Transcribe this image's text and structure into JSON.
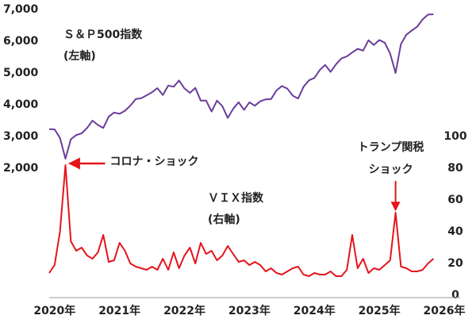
{
  "chart_data": {
    "type": "line",
    "categories": [
      null,
      "2020年",
      null,
      null,
      null,
      null,
      null,
      null,
      null,
      null,
      null,
      null,
      null,
      "2021年",
      null,
      null,
      null,
      null,
      null,
      null,
      null,
      null,
      null,
      null,
      null,
      "2022年",
      null,
      null,
      null,
      null,
      null,
      null,
      null,
      null,
      null,
      null,
      null,
      "2023年",
      null,
      null,
      null,
      null,
      null,
      null,
      null,
      null,
      null,
      null,
      null,
      "2024年",
      null,
      null,
      null,
      null,
      null,
      null,
      null,
      null,
      null,
      null,
      null,
      "2025年",
      null,
      null,
      null,
      null,
      null,
      null,
      null,
      null,
      null,
      null,
      null,
      "2026年"
    ],
    "series": [
      {
        "name": "Ｓ＆Ｐ500指数",
        "axis_note": "(左軸)",
        "color": "#6a3d9a",
        "values": [
          3230,
          3225,
          2954,
          2300,
          2912,
          3044,
          3100,
          3271,
          3500,
          3363,
          3270,
          3622,
          3756,
          3714,
          3811,
          3973,
          4181,
          4204,
          4297,
          4395,
          4523,
          4308,
          4605,
          4567,
          4766,
          4516,
          4374,
          4530,
          4132,
          4132,
          3785,
          4130,
          3955,
          3586,
          3872,
          4080,
          3840,
          4077,
          3970,
          4109,
          4169,
          4180,
          4450,
          4589,
          4508,
          4288,
          4194,
          4568,
          4770,
          4846,
          5096,
          5254,
          5036,
          5278,
          5460,
          5522,
          5648,
          5762,
          5705,
          6032,
          5882,
          6041,
          5955,
          5612,
          5000,
          5912,
          6205,
          6339,
          6460,
          6688,
          6840,
          6850,
          null,
          null
        ]
      },
      {
        "name": "ＶＩＸ指数",
        "axis_note": "(右軸)",
        "color": "#e5141c",
        "axis": "y2",
        "values": [
          14,
          19,
          40,
          82,
          34,
          28,
          30,
          25,
          23,
          27,
          38,
          21,
          22,
          33,
          28,
          20,
          18,
          17,
          16,
          18,
          16,
          23,
          16,
          27,
          17,
          25,
          30,
          20,
          33,
          26,
          28,
          22,
          25,
          31,
          26,
          21,
          22,
          19,
          21,
          19,
          15,
          17,
          14,
          13,
          15,
          17,
          18,
          13,
          12,
          14,
          13,
          13,
          15,
          12,
          12,
          16,
          38,
          17,
          23,
          14,
          17,
          16,
          19,
          22,
          52,
          18,
          17,
          15,
          15,
          16,
          20,
          23,
          null,
          null
        ]
      }
    ],
    "ylim": [
      -2000,
      7000
    ],
    "yticks": [
      {
        "value": 2000,
        "label": "2,000"
      },
      {
        "value": 3000,
        "label": "3,000"
      },
      {
        "value": 4000,
        "label": "4,000"
      },
      {
        "value": 5000,
        "label": "5,000"
      },
      {
        "value": 6000,
        "label": "6,000"
      },
      {
        "value": 7000,
        "label": "7,000"
      }
    ],
    "y2lim": [
      0,
      180
    ],
    "y2ticks": [
      0,
      20,
      40,
      60,
      80,
      100
    ],
    "annotations": [
      {
        "lines": [
          "コロナ・ショック"
        ],
        "index": 3,
        "series": 1
      },
      {
        "lines": [
          "トランプ関税",
          "ショック"
        ],
        "index": 64,
        "series": 1
      }
    ],
    "annotation_color": "#e5141c"
  }
}
